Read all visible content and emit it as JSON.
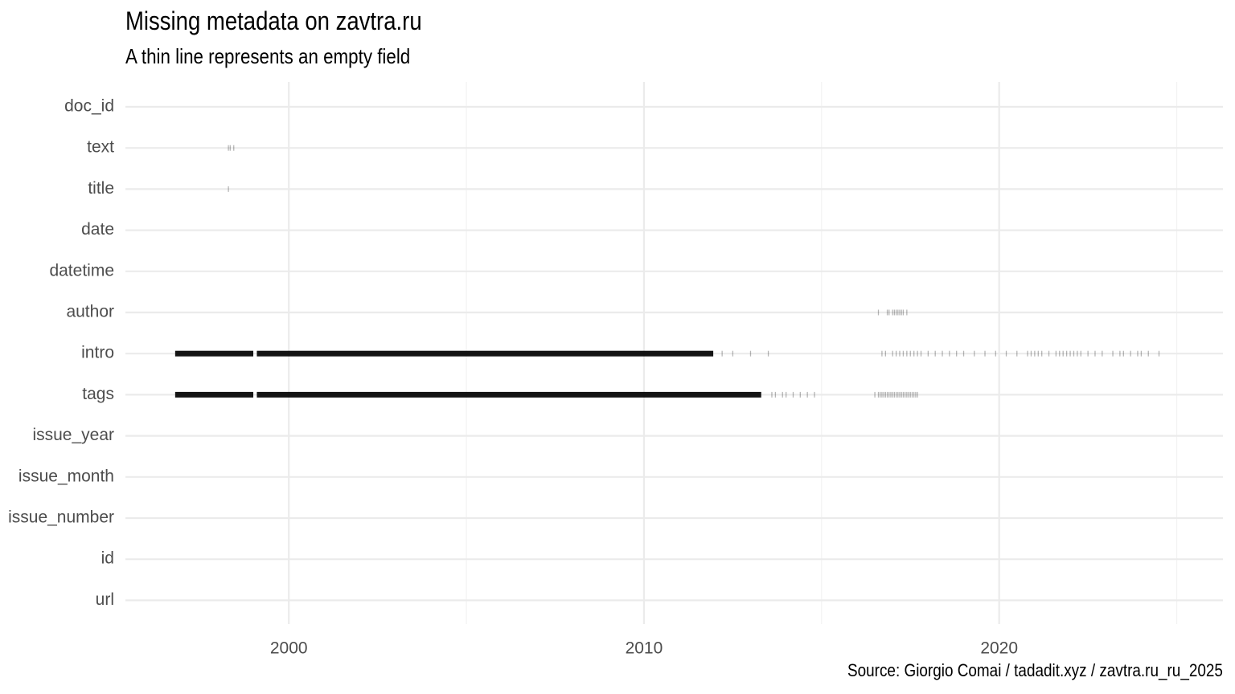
{
  "title": "Missing metadata on zavtra.ru",
  "subtitle": "A thin line represents an empty field",
  "caption": "Source: Giorgio Comai / tadadit.xyz / zavtra.ru_ru_2025",
  "colors": {
    "background": "#ffffff",
    "major_grid": "#ebebeb",
    "minor_grid": "#f2f2f2",
    "mark": "#000000",
    "axis_text": "#4d4d4d"
  },
  "chart_data": {
    "type": "strip",
    "title": "Missing metadata on zavtra.ru",
    "subtitle": "A thin line represents an empty field",
    "xlabel": "",
    "ylabel": "",
    "xlim": [
      1995.4,
      2026.3
    ],
    "x_ticks": [
      2000,
      2010,
      2020
    ],
    "x_minor_ticks": [
      2005,
      2015,
      2025
    ],
    "grid": true,
    "categories": [
      "doc_id",
      "text",
      "title",
      "date",
      "datetime",
      "author",
      "intro",
      "tags",
      "issue_year",
      "issue_month",
      "issue_number",
      "id",
      "url"
    ],
    "series": [
      {
        "field": "doc_id",
        "dense": [],
        "sparse": []
      },
      {
        "field": "text",
        "dense": [],
        "sparse": [
          1998.3,
          1998.35,
          1998.45
        ]
      },
      {
        "field": "title",
        "dense": [],
        "sparse": [
          1998.3
        ]
      },
      {
        "field": "date",
        "dense": [],
        "sparse": []
      },
      {
        "field": "datetime",
        "dense": [],
        "sparse": []
      },
      {
        "field": "author",
        "dense": [],
        "sparse": [
          2016.6,
          2016.85,
          2016.9,
          2017.0,
          2017.05,
          2017.1,
          2017.15,
          2017.2,
          2017.25,
          2017.3,
          2017.4
        ]
      },
      {
        "field": "intro",
        "dense": [
          [
            1996.8,
            1999.0
          ],
          [
            1999.1,
            2011.95
          ]
        ],
        "sparse": [
          2012.2,
          2012.5,
          2013.0,
          2013.5,
          2016.7,
          2016.8,
          2017.0,
          2017.1,
          2017.2,
          2017.3,
          2017.4,
          2017.5,
          2017.6,
          2017.7,
          2017.8,
          2018.0,
          2018.2,
          2018.4,
          2018.6,
          2018.8,
          2019.0,
          2019.3,
          2019.6,
          2019.9,
          2020.2,
          2020.5,
          2020.8,
          2020.9,
          2021.0,
          2021.1,
          2021.2,
          2021.4,
          2021.6,
          2021.7,
          2021.8,
          2021.9,
          2022.0,
          2022.1,
          2022.2,
          2022.3,
          2022.5,
          2022.7,
          2022.9,
          2023.2,
          2023.4,
          2023.5,
          2023.7,
          2023.9,
          2024.0,
          2024.2,
          2024.5
        ]
      },
      {
        "field": "tags",
        "dense": [
          [
            1996.8,
            1999.0
          ],
          [
            1999.1,
            2013.3
          ]
        ],
        "sparse": [
          2013.6,
          2013.7,
          2013.9,
          2014.0,
          2014.2,
          2014.4,
          2014.6,
          2014.8,
          2016.5,
          2016.6,
          2016.65,
          2016.7,
          2016.75,
          2016.8,
          2016.85,
          2016.9,
          2016.95,
          2017.0,
          2017.05,
          2017.1,
          2017.15,
          2017.2,
          2017.25,
          2017.3,
          2017.35,
          2017.4,
          2017.45,
          2017.5,
          2017.55,
          2017.6,
          2017.65,
          2017.7
        ]
      },
      {
        "field": "issue_year",
        "dense": [],
        "sparse": []
      },
      {
        "field": "issue_month",
        "dense": [],
        "sparse": []
      },
      {
        "field": "issue_number",
        "dense": [],
        "sparse": []
      },
      {
        "field": "id",
        "dense": [],
        "sparse": []
      },
      {
        "field": "url",
        "dense": [],
        "sparse": []
      }
    ]
  }
}
